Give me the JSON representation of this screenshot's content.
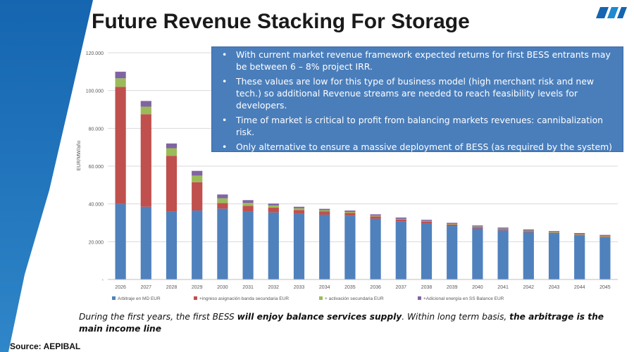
{
  "title": "Future Revenue Stacking For Storage",
  "callout": {
    "bullets": [
      "With current market revenue framework expected returns for first BESS entrants may be between 6 – 8% project IRR.",
      "These values are low for this type of business model (high merchant risk and new tech.) so additional Revenue streams are needed to reach feasibility levels for developers.",
      "Time of market is critical to profit from balancing markets revenues: cannibalization risk.",
      "Only alternative to ensure a massive deployment of BESS (as required by the system) is to have in place long-term secured revenues (i.e. capacity payment or specific auction)."
    ]
  },
  "caption": {
    "part1": "During the first years, the first BESS ",
    "bold1": "will enjoy balance services supply",
    "part2": ". Within long term basis, ",
    "bold2": "the arbitrage is the main income line"
  },
  "source": "Source: AEPIBAL",
  "colors": {
    "left_band": "#1f6fb5",
    "callout_bg": "#4a7ebb"
  },
  "chart_data": {
    "type": "bar",
    "stacked": true,
    "ylabel": "EUR/MW/año",
    "ylim": [
      0,
      120000
    ],
    "yticks": [
      0,
      20000,
      40000,
      60000,
      80000,
      100000,
      120000
    ],
    "ytick_labels": [
      "-",
      "20.000",
      "40.000",
      "60.000",
      "80.000",
      "100.000",
      "120.000"
    ],
    "grid": true,
    "legend_position": "bottom",
    "categories": [
      "2026",
      "2027",
      "2028",
      "2029",
      "2030",
      "2031",
      "2032",
      "2033",
      "2034",
      "2035",
      "2036",
      "2037",
      "2038",
      "2039",
      "2040",
      "2041",
      "2042",
      "2043",
      "2044",
      "2045"
    ],
    "series": [
      {
        "name": "Arbitraje en MD EUR",
        "color": "#4f81bd",
        "values": [
          40000,
          38500,
          36000,
          36500,
          37500,
          36000,
          35500,
          34800,
          34300,
          33800,
          32200,
          30800,
          29800,
          28300,
          27000,
          26000,
          25000,
          24200,
          23200,
          22300
        ]
      },
      {
        "name": "+ingreso asignación banda secundaria EUR",
        "color": "#c0504d",
        "values": [
          62000,
          49000,
          29500,
          15000,
          3000,
          3000,
          2500,
          2000,
          1800,
          1500,
          1200,
          1000,
          900,
          800,
          700,
          600,
          600,
          500,
          500,
          400
        ]
      },
      {
        "name": "+ activación secundaria EUR",
        "color": "#9bbb59",
        "values": [
          4500,
          4000,
          4000,
          3500,
          2500,
          1500,
          1200,
          900,
          600,
          500,
          400,
          300,
          300,
          300,
          300,
          300,
          300,
          300,
          300,
          300
        ]
      },
      {
        "name": "+Adicional energía en SS Balance EUR",
        "color": "#8064a2",
        "values": [
          3500,
          3000,
          2500,
          2500,
          2000,
          1500,
          1000,
          800,
          700,
          700,
          700,
          700,
          600,
          600,
          600,
          600,
          600,
          600,
          600,
          600
        ]
      }
    ]
  }
}
